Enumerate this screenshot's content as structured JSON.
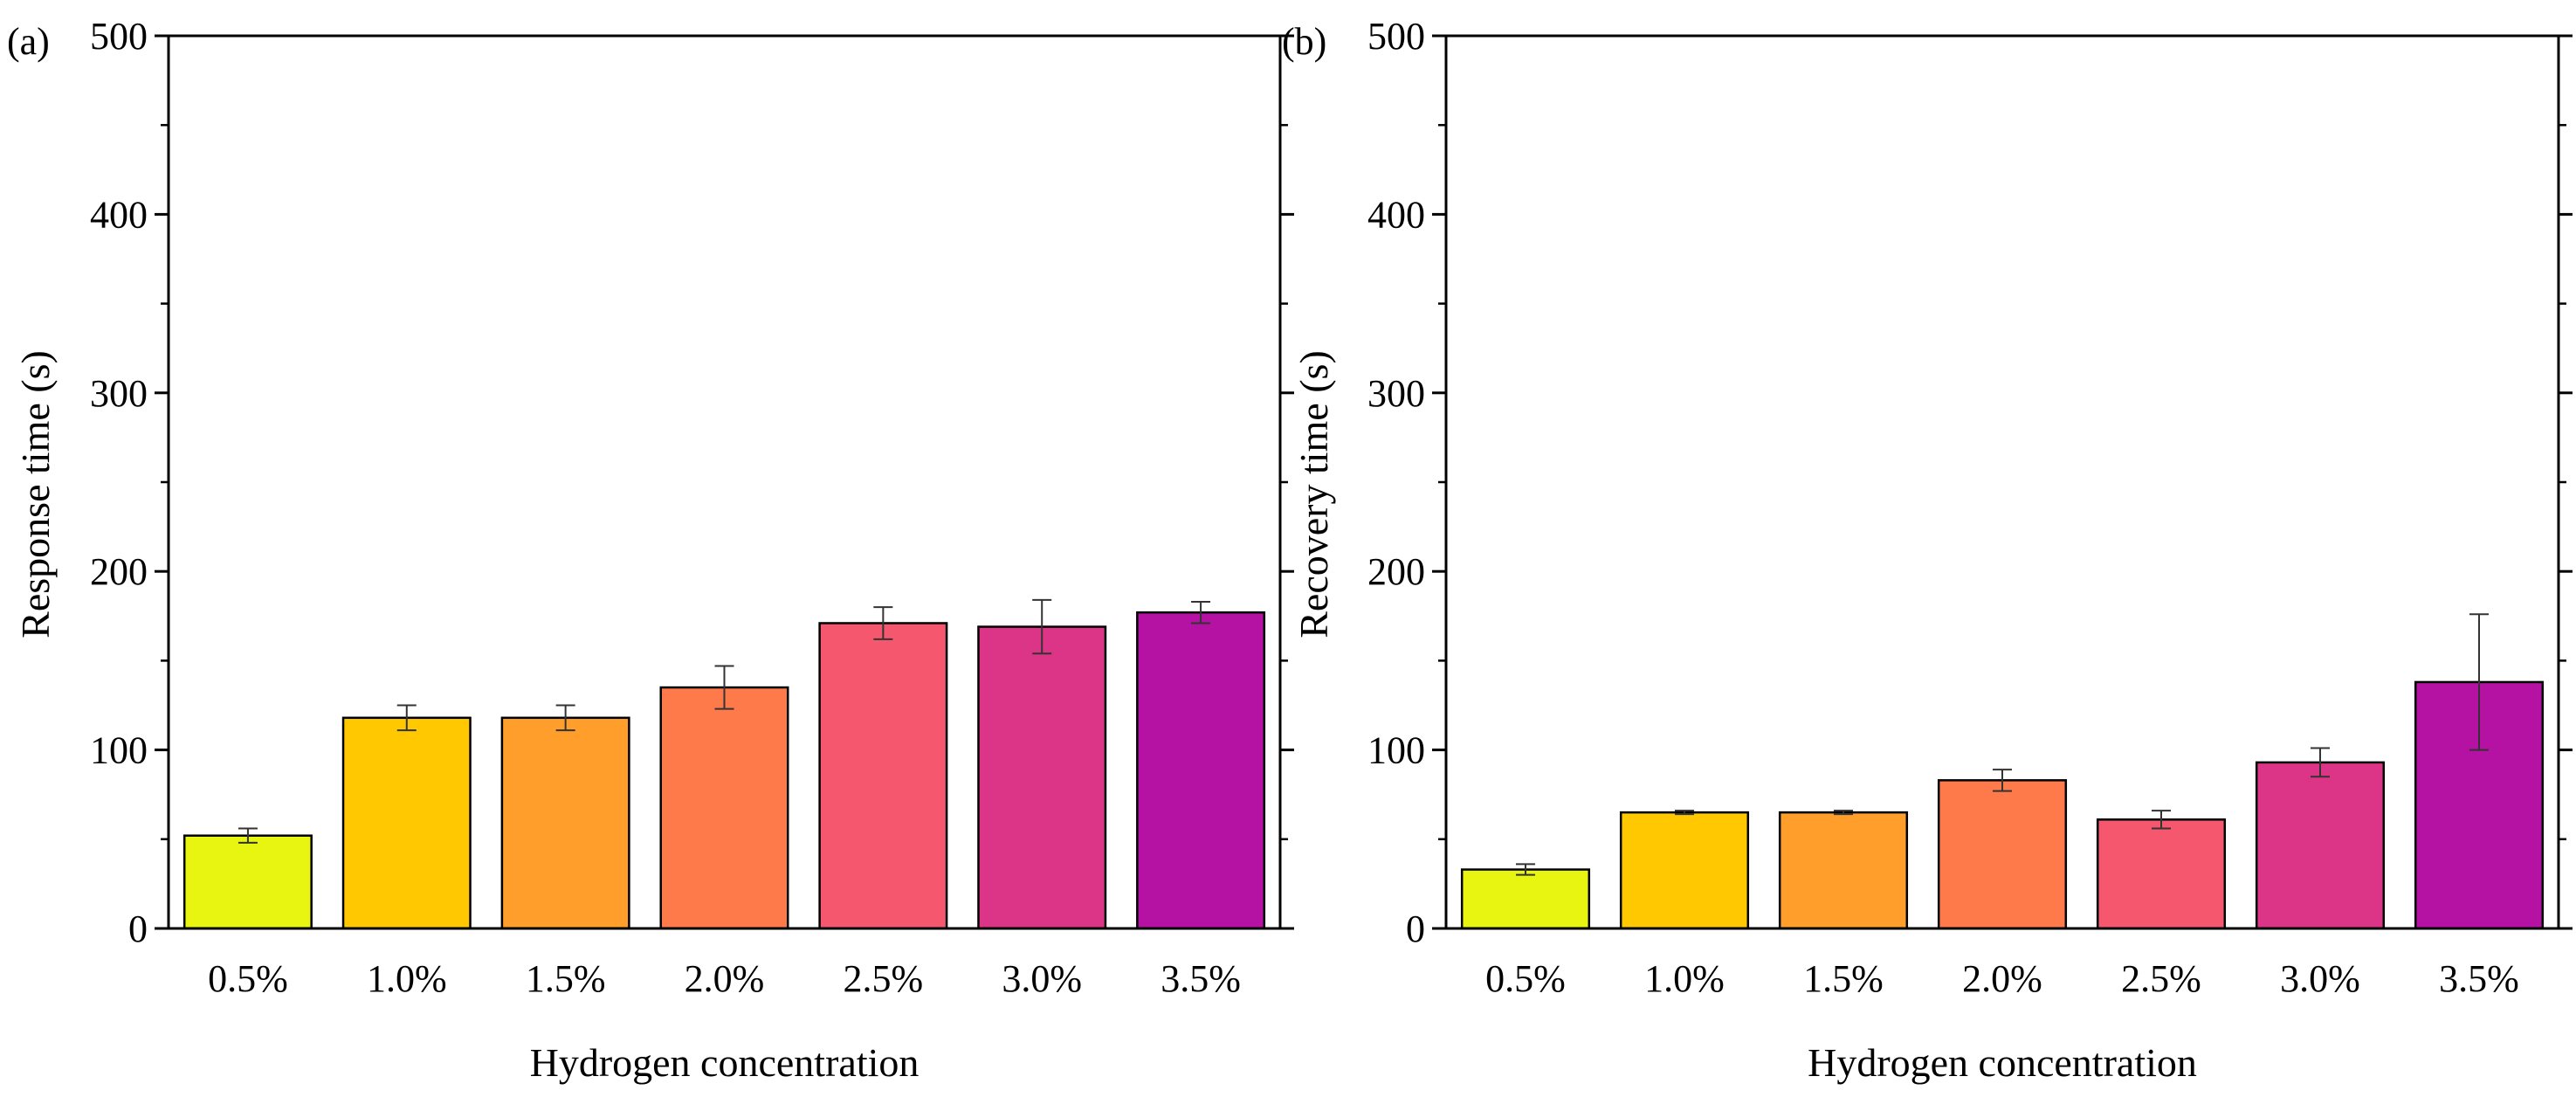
{
  "chart_data": [
    {
      "type": "bar",
      "panel_label": "(a)",
      "xlabel": "Hydrogen concentration",
      "ylabel": "Response time (s)",
      "categories": [
        "0.5%",
        "1.0%",
        "1.5%",
        "2.0%",
        "2.5%",
        "3.0%",
        "3.5%"
      ],
      "values": [
        52,
        118,
        118,
        135,
        171,
        169,
        177
      ],
      "errors": [
        4,
        7,
        7,
        12,
        9,
        15,
        6
      ],
      "colors": [
        "#e8f511",
        "#ffc800",
        "#ff9e2b",
        "#ff7a4a",
        "#f5586e",
        "#dc3486",
        "#b511a2"
      ],
      "ylim": [
        0,
        500
      ],
      "yticks": [
        "0",
        "100",
        "200",
        "300",
        "400",
        "500"
      ],
      "ytick_values": [
        0,
        100,
        200,
        300,
        400,
        500
      ]
    },
    {
      "type": "bar",
      "panel_label": "(b)",
      "xlabel": "Hydrogen concentration",
      "ylabel": "Recovery time (s)",
      "categories": [
        "0.5%",
        "1.0%",
        "1.5%",
        "2.0%",
        "2.5%",
        "3.0%",
        "3.5%"
      ],
      "values": [
        33,
        65,
        65,
        83,
        61,
        93,
        138
      ],
      "errors": [
        3,
        1,
        1,
        6,
        5,
        8,
        38
      ],
      "colors": [
        "#e8f511",
        "#ffc800",
        "#ff9e2b",
        "#ff7a4a",
        "#f5586e",
        "#dc3486",
        "#b511a2"
      ],
      "ylim": [
        0,
        500
      ],
      "yticks": [
        "0",
        "100",
        "200",
        "300",
        "400",
        "500"
      ],
      "ytick_values": [
        0,
        100,
        200,
        300,
        400,
        500
      ]
    }
  ]
}
